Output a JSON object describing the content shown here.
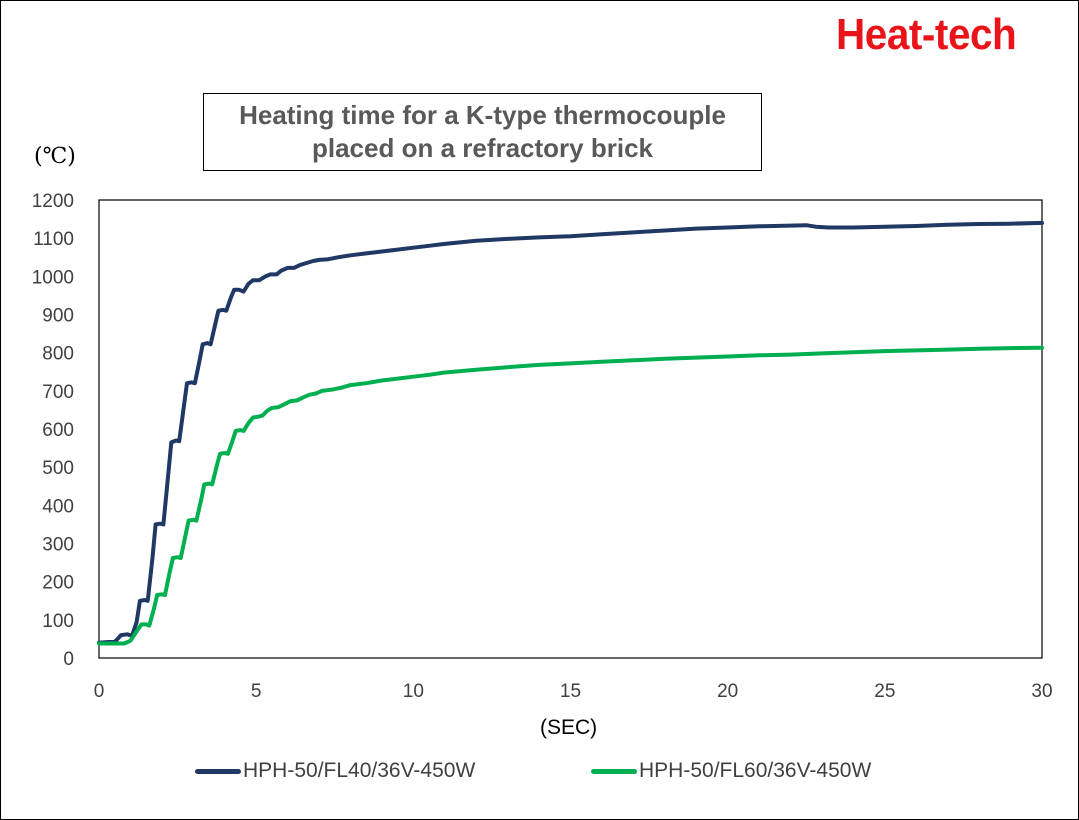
{
  "brand": {
    "text": "Heat-tech",
    "color": "#e8141a"
  },
  "chart_data": {
    "type": "line",
    "title": "Heating time for a K-type thermocouple\nplaced on a refractory brick",
    "ylabel": "(℃)",
    "xlabel": "(SEC)",
    "xlim": [
      0,
      30
    ],
    "ylim": [
      0,
      1200
    ],
    "x_ticks": [
      0,
      5,
      10,
      15,
      20,
      25,
      30
    ],
    "y_ticks": [
      0,
      100,
      200,
      300,
      400,
      500,
      600,
      700,
      800,
      900,
      1000,
      1100,
      1200
    ],
    "grid": false,
    "legend_position": "bottom",
    "series": [
      {
        "name": "HPH-50/FL40/36V-450W",
        "color": "#203864",
        "points": [
          [
            0,
            40
          ],
          [
            0.3,
            42
          ],
          [
            0.5,
            42
          ],
          [
            0.7,
            60
          ],
          [
            0.9,
            62
          ],
          [
            1.05,
            58
          ],
          [
            1.2,
            95
          ],
          [
            1.3,
            150
          ],
          [
            1.45,
            152
          ],
          [
            1.55,
            150
          ],
          [
            1.7,
            260
          ],
          [
            1.8,
            350
          ],
          [
            1.95,
            352
          ],
          [
            2.05,
            350
          ],
          [
            2.2,
            480
          ],
          [
            2.3,
            565
          ],
          [
            2.45,
            570
          ],
          [
            2.55,
            568
          ],
          [
            2.7,
            660
          ],
          [
            2.8,
            720
          ],
          [
            2.95,
            722
          ],
          [
            3.05,
            720
          ],
          [
            3.2,
            780
          ],
          [
            3.3,
            822
          ],
          [
            3.45,
            825
          ],
          [
            3.55,
            822
          ],
          [
            3.7,
            875
          ],
          [
            3.8,
            910
          ],
          [
            3.95,
            912
          ],
          [
            4.05,
            910
          ],
          [
            4.2,
            945
          ],
          [
            4.3,
            965
          ],
          [
            4.45,
            965
          ],
          [
            4.6,
            960
          ],
          [
            4.75,
            980
          ],
          [
            4.9,
            990
          ],
          [
            5.1,
            990
          ],
          [
            5.3,
            1000
          ],
          [
            5.45,
            1005
          ],
          [
            5.65,
            1005
          ],
          [
            5.8,
            1015
          ],
          [
            6.0,
            1022
          ],
          [
            6.2,
            1022
          ],
          [
            6.4,
            1030
          ],
          [
            6.6,
            1035
          ],
          [
            6.8,
            1040
          ],
          [
            7.0,
            1043
          ],
          [
            7.3,
            1045
          ],
          [
            7.6,
            1050
          ],
          [
            8.0,
            1055
          ],
          [
            8.5,
            1060
          ],
          [
            9,
            1065
          ],
          [
            9.5,
            1070
          ],
          [
            10,
            1075
          ],
          [
            10.5,
            1080
          ],
          [
            11,
            1085
          ],
          [
            12,
            1093
          ],
          [
            13,
            1098
          ],
          [
            14,
            1102
          ],
          [
            15,
            1105
          ],
          [
            16,
            1110
          ],
          [
            17,
            1115
          ],
          [
            18,
            1120
          ],
          [
            19,
            1125
          ],
          [
            20,
            1128
          ],
          [
            21,
            1131
          ],
          [
            22,
            1133
          ],
          [
            22.5,
            1134
          ],
          [
            22.8,
            1130
          ],
          [
            23.2,
            1128
          ],
          [
            24,
            1128
          ],
          [
            25,
            1130
          ],
          [
            26,
            1132
          ],
          [
            27,
            1135
          ],
          [
            28,
            1137
          ],
          [
            29,
            1138
          ],
          [
            30,
            1140
          ]
        ]
      },
      {
        "name": "HPH-50/FL60/36V-450W",
        "color": "#00b050",
        "points": [
          [
            0,
            38
          ],
          [
            0.5,
            38
          ],
          [
            0.8,
            38
          ],
          [
            1.0,
            45
          ],
          [
            1.2,
            70
          ],
          [
            1.35,
            88
          ],
          [
            1.5,
            88
          ],
          [
            1.6,
            85
          ],
          [
            1.75,
            130
          ],
          [
            1.85,
            165
          ],
          [
            2.0,
            167
          ],
          [
            2.1,
            165
          ],
          [
            2.25,
            225
          ],
          [
            2.35,
            262
          ],
          [
            2.5,
            264
          ],
          [
            2.6,
            262
          ],
          [
            2.75,
            320
          ],
          [
            2.85,
            360
          ],
          [
            3.0,
            362
          ],
          [
            3.1,
            360
          ],
          [
            3.25,
            415
          ],
          [
            3.35,
            455
          ],
          [
            3.5,
            457
          ],
          [
            3.6,
            455
          ],
          [
            3.75,
            505
          ],
          [
            3.85,
            535
          ],
          [
            4.0,
            537
          ],
          [
            4.1,
            535
          ],
          [
            4.25,
            570
          ],
          [
            4.35,
            595
          ],
          [
            4.5,
            597
          ],
          [
            4.6,
            595
          ],
          [
            4.75,
            615
          ],
          [
            4.9,
            630
          ],
          [
            5.05,
            632
          ],
          [
            5.2,
            635
          ],
          [
            5.35,
            648
          ],
          [
            5.5,
            655
          ],
          [
            5.7,
            657
          ],
          [
            5.9,
            665
          ],
          [
            6.1,
            673
          ],
          [
            6.3,
            675
          ],
          [
            6.5,
            683
          ],
          [
            6.7,
            690
          ],
          [
            6.9,
            693
          ],
          [
            7.1,
            700
          ],
          [
            7.4,
            703
          ],
          [
            7.7,
            708
          ],
          [
            8.0,
            715
          ],
          [
            8.5,
            720
          ],
          [
            9,
            727
          ],
          [
            9.5,
            732
          ],
          [
            10,
            737
          ],
          [
            10.5,
            742
          ],
          [
            11,
            748
          ],
          [
            12,
            755
          ],
          [
            13,
            762
          ],
          [
            14,
            768
          ],
          [
            15,
            772
          ],
          [
            16,
            776
          ],
          [
            17,
            780
          ],
          [
            18,
            784
          ],
          [
            19,
            787
          ],
          [
            20,
            790
          ],
          [
            21,
            793
          ],
          [
            22,
            795
          ],
          [
            23,
            798
          ],
          [
            24,
            801
          ],
          [
            25,
            804
          ],
          [
            26,
            806
          ],
          [
            27,
            808
          ],
          [
            28,
            810
          ],
          [
            29,
            812
          ],
          [
            30,
            813
          ]
        ]
      }
    ]
  }
}
